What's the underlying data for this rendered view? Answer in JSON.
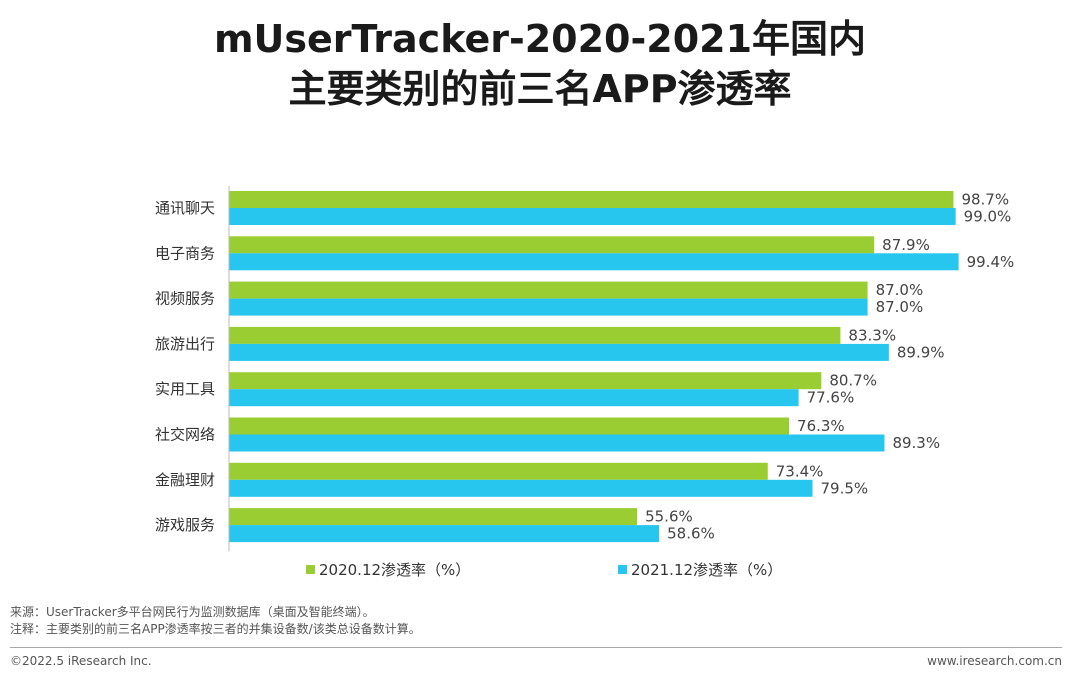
{
  "title": {
    "line1": "mUserTracker-2020-2021年国内",
    "line2": "主要类别的前三名APP渗透率"
  },
  "chart_data": {
    "type": "bar",
    "orientation": "horizontal",
    "categories": [
      "通讯聊天",
      "电子商务",
      "视频服务",
      "旅游出行",
      "实用工具",
      "社交网络",
      "金融理财",
      "游戏服务"
    ],
    "series": [
      {
        "name": "2020.12渗透率（%）",
        "color": "#9acd32",
        "values": [
          98.7,
          87.9,
          87.0,
          83.3,
          80.7,
          76.3,
          73.4,
          55.6
        ],
        "labels": [
          "98.7%",
          "87.9%",
          "87.0%",
          "83.3%",
          "80.7%",
          "76.3%",
          "73.4%",
          "55.6%"
        ]
      },
      {
        "name": "2021.12渗透率（%）",
        "color": "#26c6ee",
        "values": [
          99.0,
          99.4,
          87.0,
          89.9,
          77.6,
          89.3,
          79.5,
          58.6
        ],
        "labels": [
          "99.0%",
          "99.4%",
          "87.0%",
          "89.9%",
          "77.6%",
          "89.3%",
          "79.5%",
          "58.6%"
        ]
      }
    ],
    "xlim": [
      0,
      100
    ],
    "grid": false,
    "legend_position": "bottom"
  },
  "notes": {
    "source": "来源：UserTracker多平台网民行为监测数据库（桌面及智能终端）。",
    "remark": "注释：主要类别的前三名APP渗透率按三者的并集设备数/该类总设备数计算。"
  },
  "footer": {
    "copyright": "©2022.5 iResearch Inc.",
    "website": "www.iresearch.com.cn"
  }
}
